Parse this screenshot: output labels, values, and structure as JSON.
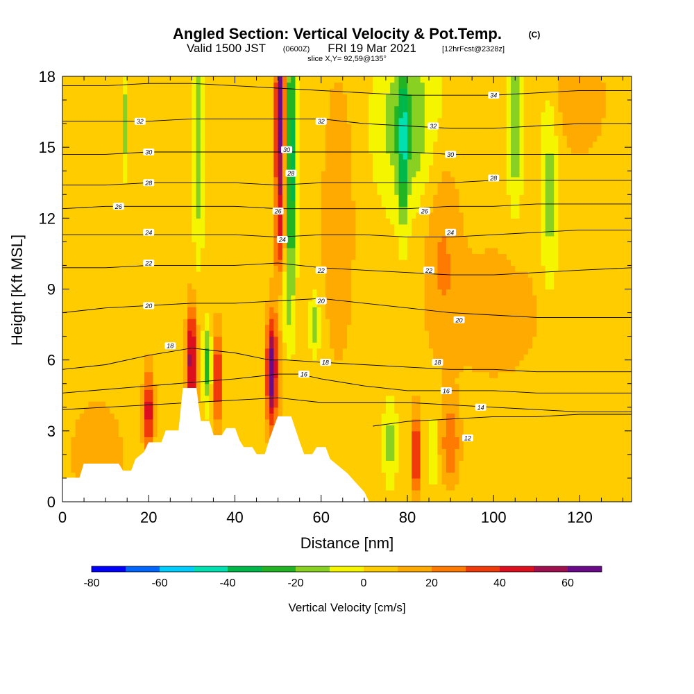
{
  "title": {
    "main": "Angled Section: Vertical Velocity & Pot.Temp.",
    "main_suffix": "(C)",
    "valid_prefix": "Valid 1500 JST",
    "valid_zulu": "(0600Z)",
    "valid_date": "FRI 19 Mar 2021",
    "forecast": "[12hrFcst@2328z]",
    "slice": "slice X,Y= 92,59@135°"
  },
  "chart_data": {
    "type": "heatmap",
    "xlabel": "Distance [nm]",
    "ylabel": "Height [Kft MSL]",
    "xlim": [
      0,
      132
    ],
    "ylim": [
      0,
      18
    ],
    "x_ticks": [
      0,
      20,
      40,
      60,
      80,
      100,
      120
    ],
    "y_ticks": [
      0,
      3,
      6,
      9,
      12,
      15,
      18
    ],
    "colorbar": {
      "label": "Vertical Velocity [cm/s]",
      "range": [
        -80,
        70
      ],
      "step": 10,
      "ticks": [
        -80,
        -60,
        -40,
        -20,
        0,
        20,
        40,
        60
      ],
      "colors": [
        "#0000ff",
        "#0066ff",
        "#00ccff",
        "#00e0b0",
        "#00b84a",
        "#22b422",
        "#88d022",
        "#f5f500",
        "#ffcc00",
        "#ffaa00",
        "#ff7a00",
        "#f03a0a",
        "#dd0f1e",
        "#a0104f",
        "#6a0a8a"
      ]
    },
    "background_value": 5,
    "terrain_kft": [
      [
        0,
        1
      ],
      [
        4,
        1
      ],
      [
        5,
        1.6
      ],
      [
        13,
        1.6
      ],
      [
        14,
        1.3
      ],
      [
        16,
        1.3
      ],
      [
        17,
        1.8
      ],
      [
        19,
        2.1
      ],
      [
        20,
        2.5
      ],
      [
        23,
        2.5
      ],
      [
        24,
        3
      ],
      [
        27,
        3
      ],
      [
        28,
        4.8
      ],
      [
        31,
        4.8
      ],
      [
        32,
        3.4
      ],
      [
        34,
        3.4
      ],
      [
        35,
        2.8
      ],
      [
        37,
        2.8
      ],
      [
        38,
        3.1
      ],
      [
        40,
        3.1
      ],
      [
        41,
        2.6
      ],
      [
        42,
        2.3
      ],
      [
        44,
        2.3
      ],
      [
        45,
        2
      ],
      [
        47,
        2
      ],
      [
        48,
        2.6
      ],
      [
        50,
        3.6
      ],
      [
        53,
        3.6
      ],
      [
        55,
        2.5
      ],
      [
        56,
        2
      ],
      [
        58,
        2
      ],
      [
        59,
        2.3
      ],
      [
        61,
        2.3
      ],
      [
        62,
        1.8
      ],
      [
        64,
        1.5
      ],
      [
        66,
        1.2
      ],
      [
        68,
        0.8
      ],
      [
        70,
        0.4
      ],
      [
        71,
        0
      ],
      [
        132,
        0
      ]
    ],
    "theta_contours": [
      {
        "value": 12,
        "x": [
          72,
          80,
          90,
          100,
          110,
          120,
          132
        ],
        "y": [
          3.2,
          3.4,
          3.5,
          3.6,
          3.6,
          3.7,
          3.7
        ],
        "labels": [
          [
            94,
            2.7
          ]
        ]
      },
      {
        "value": 14,
        "x": [
          0,
          20,
          40,
          50,
          55,
          60,
          70,
          80,
          90,
          100,
          110,
          120,
          132
        ],
        "y": [
          3.9,
          4.1,
          4.3,
          4.4,
          4.3,
          4.2,
          4.2,
          4.2,
          4.1,
          4.0,
          3.9,
          3.8,
          3.8
        ],
        "labels": [
          [
            97,
            4
          ]
        ]
      },
      {
        "value": 16,
        "x": [
          0,
          20,
          40,
          50,
          55,
          60,
          70,
          80,
          90,
          100,
          110,
          120,
          132
        ],
        "y": [
          4.6,
          4.9,
          5.2,
          5.4,
          5.4,
          5.2,
          4.9,
          4.7,
          4.7,
          4.7,
          4.6,
          4.6,
          4.6
        ],
        "labels": [
          [
            56,
            5.4
          ],
          [
            89,
            4.7
          ]
        ]
      },
      {
        "value": 18,
        "x": [
          0,
          10,
          20,
          30,
          40,
          48,
          52,
          60,
          70,
          80,
          90,
          100,
          110,
          120,
          132
        ],
        "y": [
          5.6,
          5.8,
          6.2,
          6.5,
          6.3,
          6.0,
          6.0,
          5.9,
          5.8,
          5.7,
          5.6,
          5.6,
          5.5,
          5.5,
          5.5
        ],
        "labels": [
          [
            25,
            6.6
          ],
          [
            61,
            5.9
          ],
          [
            87,
            5.9
          ]
        ]
      },
      {
        "value": 20,
        "x": [
          0,
          10,
          20,
          30,
          40,
          50,
          60,
          70,
          80,
          90,
          100,
          110,
          120,
          132
        ],
        "y": [
          8.0,
          8.2,
          8.3,
          8.4,
          8.4,
          8.5,
          8.6,
          8.4,
          8.2,
          8.0,
          7.9,
          7.8,
          7.8,
          7.8
        ],
        "labels": [
          [
            20,
            8.3
          ],
          [
            60,
            8.5
          ],
          [
            92,
            7.7
          ]
        ]
      },
      {
        "value": 22,
        "x": [
          0,
          10,
          20,
          30,
          40,
          50,
          60,
          70,
          80,
          90,
          100,
          110,
          120,
          132
        ],
        "y": [
          9.9,
          9.9,
          10.0,
          10.0,
          10.0,
          10.1,
          9.9,
          9.8,
          9.7,
          9.6,
          9.6,
          9.7,
          9.8,
          9.9
        ],
        "labels": [
          [
            20,
            10.1
          ],
          [
            60,
            9.8
          ],
          [
            85,
            9.8
          ]
        ]
      },
      {
        "value": 24,
        "x": [
          0,
          10,
          20,
          30,
          40,
          50,
          60,
          70,
          80,
          90,
          100,
          110,
          120,
          132
        ],
        "y": [
          11.3,
          11.3,
          11.3,
          11.3,
          11.3,
          11.2,
          11.3,
          11.3,
          11.2,
          11.2,
          11.3,
          11.4,
          11.5,
          11.5
        ],
        "labels": [
          [
            20,
            11.4
          ],
          [
            51,
            11.1
          ],
          [
            90,
            11.4
          ]
        ]
      },
      {
        "value": 26,
        "x": [
          0,
          10,
          20,
          30,
          40,
          50,
          60,
          70,
          80,
          90,
          100,
          110,
          120,
          132
        ],
        "y": [
          12.4,
          12.5,
          12.5,
          12.5,
          12.5,
          12.4,
          12.4,
          12.4,
          12.4,
          12.5,
          12.5,
          12.6,
          12.6,
          12.6
        ],
        "labels": [
          [
            13,
            12.5
          ],
          [
            50,
            12.3
          ],
          [
            84,
            12.3
          ]
        ]
      },
      {
        "value": 28,
        "x": [
          0,
          10,
          20,
          30,
          40,
          50,
          60,
          70,
          80,
          90,
          100,
          110,
          120,
          132
        ],
        "y": [
          13.4,
          13.4,
          13.5,
          13.5,
          13.5,
          13.4,
          13.5,
          13.5,
          13.5,
          13.5,
          13.6,
          13.6,
          13.6,
          13.6
        ],
        "labels": [
          [
            20,
            13.5
          ],
          [
            53,
            13.9
          ],
          [
            100,
            13.7
          ]
        ]
      },
      {
        "value": 30,
        "x": [
          0,
          10,
          20,
          30,
          40,
          50,
          60,
          70,
          80,
          90,
          100,
          110,
          120,
          132
        ],
        "y": [
          14.7,
          14.7,
          14.8,
          14.8,
          14.8,
          14.8,
          14.8,
          14.8,
          14.8,
          14.7,
          14.7,
          14.7,
          14.7,
          14.7
        ],
        "labels": [
          [
            20,
            14.8
          ],
          [
            52,
            14.9
          ],
          [
            90,
            14.7
          ]
        ]
      },
      {
        "value": 32,
        "x": [
          0,
          10,
          20,
          30,
          40,
          50,
          60,
          70,
          80,
          90,
          100,
          110,
          120,
          132
        ],
        "y": [
          16.1,
          16.1,
          16.1,
          16.2,
          16.2,
          16.2,
          16.2,
          16.0,
          15.9,
          15.8,
          15.8,
          15.9,
          16.0,
          16.0
        ],
        "labels": [
          [
            18,
            16.1
          ],
          [
            60,
            16.1
          ],
          [
            86,
            15.9
          ]
        ]
      },
      {
        "value": 34,
        "x": [
          0,
          10,
          20,
          30,
          40,
          50,
          60,
          70,
          80,
          90,
          100,
          110,
          120,
          132
        ],
        "y": [
          17.6,
          17.6,
          17.7,
          17.7,
          17.6,
          17.5,
          17.4,
          17.3,
          17.2,
          17.2,
          17.2,
          17.3,
          17.4,
          17.4
        ],
        "labels": [
          [
            100,
            17.2
          ]
        ]
      }
    ],
    "velocity_features": [
      {
        "x": 50.5,
        "y": 13,
        "sx": 0.9,
        "sy": 5,
        "v": 45
      },
      {
        "x": 50.5,
        "y": 17,
        "sx": 0.6,
        "sy": 1.5,
        "v": 45
      },
      {
        "x": 53,
        "y": 14.5,
        "sx": 0.9,
        "sy": 4,
        "v": -45
      },
      {
        "x": 48.5,
        "y": 5.5,
        "sx": 0.8,
        "sy": 1.6,
        "v": 65
      },
      {
        "x": 51,
        "y": 8.5,
        "sx": 1.0,
        "sy": 1.6,
        "v": -30
      },
      {
        "x": 30,
        "y": 6,
        "sx": 0.8,
        "sy": 1.6,
        "v": 55
      },
      {
        "x": 33.5,
        "y": 5.8,
        "sx": 0.7,
        "sy": 1.2,
        "v": -30
      },
      {
        "x": 36,
        "y": 5.2,
        "sx": 0.7,
        "sy": 1.5,
        "v": 40
      },
      {
        "x": 20,
        "y": 3.8,
        "sx": 0.8,
        "sy": 1.2,
        "v": 45
      },
      {
        "x": 31.5,
        "y": 15,
        "sx": 0.9,
        "sy": 3,
        "v": -25
      },
      {
        "x": 14.5,
        "y": 16,
        "sx": 0.6,
        "sy": 1.5,
        "v": -20
      },
      {
        "x": 80,
        "y": 16,
        "sx": 5,
        "sy": 2.5,
        "v": -25
      },
      {
        "x": 79,
        "y": 15,
        "sx": 0.8,
        "sy": 2.5,
        "v": -30
      },
      {
        "x": 105,
        "y": 16,
        "sx": 1.2,
        "sy": 2.5,
        "v": -25
      },
      {
        "x": 113,
        "y": 13,
        "sx": 1.5,
        "sy": 3,
        "v": -20
      },
      {
        "x": 82,
        "y": 2.0,
        "sx": 0.7,
        "sy": 1.2,
        "v": 45
      },
      {
        "x": 76,
        "y": 2.5,
        "sx": 1.2,
        "sy": 1.2,
        "v": -20
      },
      {
        "x": 90,
        "y": 2.5,
        "sx": 1.5,
        "sy": 1.2,
        "v": 25
      },
      {
        "x": 86,
        "y": 2.2,
        "sx": 0.6,
        "sy": 1.0,
        "v": -20
      },
      {
        "x": 58.5,
        "y": 7.5,
        "sx": 0.8,
        "sy": 1.0,
        "v": -20
      },
      {
        "x": 64,
        "y": 12,
        "sx": 2.5,
        "sy": 4,
        "v": 15
      },
      {
        "x": 88,
        "y": 11,
        "sx": 3,
        "sy": 3,
        "v": 15
      },
      {
        "x": 120,
        "y": 17,
        "sx": 4,
        "sy": 1.5,
        "v": 15
      },
      {
        "x": 8,
        "y": 2,
        "sx": 4,
        "sy": 1.5,
        "v": 15
      },
      {
        "x": 100,
        "y": 8,
        "sx": 8,
        "sy": 2,
        "v": 12
      }
    ]
  }
}
